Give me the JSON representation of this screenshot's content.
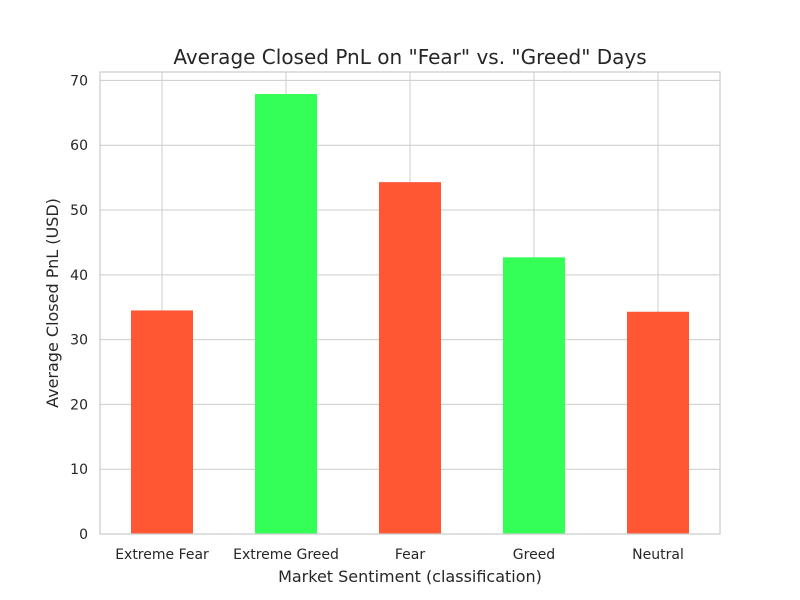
{
  "chart_data": {
    "type": "bar",
    "title": "Average Closed PnL on \"Fear\" vs. \"Greed\" Days",
    "xlabel": "Market Sentiment (classification)",
    "ylabel": "Average Closed PnL (USD)",
    "categories": [
      "Extreme Fear",
      "Extreme Greed",
      "Fear",
      "Greed",
      "Neutral"
    ],
    "values": [
      34.5,
      67.9,
      54.3,
      42.7,
      34.3
    ],
    "colors": [
      "#ff5733",
      "#33ff57",
      "#ff5733",
      "#33ff57",
      "#ff5733"
    ],
    "ylim": [
      0,
      71.3
    ],
    "yticks": [
      0,
      10,
      20,
      30,
      40,
      50,
      60,
      70
    ],
    "grid": true,
    "legend": "none"
  }
}
